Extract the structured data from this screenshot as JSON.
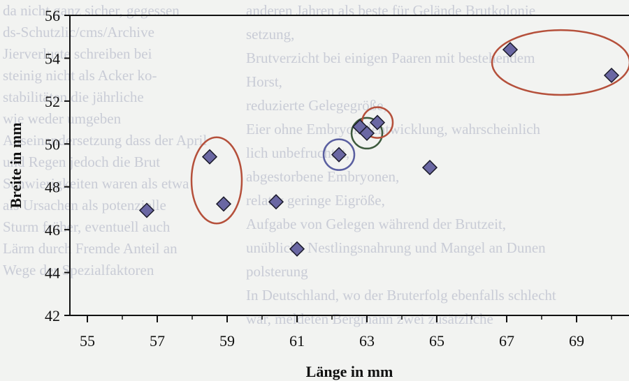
{
  "chart_data": {
    "type": "scatter",
    "xlabel": "Länge in mm",
    "ylabel": "Breite in mm",
    "xlim": [
      54.5,
      70.5
    ],
    "ylim": [
      42,
      56
    ],
    "xticks": [
      "55",
      "57",
      "59",
      "61",
      "63",
      "65",
      "67",
      "69"
    ],
    "yticks": [
      "42",
      "44",
      "46",
      "48",
      "50",
      "52",
      "54",
      "56"
    ],
    "grid": false,
    "marker": "diamond",
    "marker_color": "#6a67a3",
    "points": [
      {
        "x": 56.7,
        "y": 46.9
      },
      {
        "x": 58.5,
        "y": 49.4
      },
      {
        "x": 58.9,
        "y": 47.2
      },
      {
        "x": 60.4,
        "y": 47.3
      },
      {
        "x": 61.0,
        "y": 45.1
      },
      {
        "x": 62.2,
        "y": 49.5
      },
      {
        "x": 62.8,
        "y": 50.8
      },
      {
        "x": 63.0,
        "y": 50.5
      },
      {
        "x": 63.3,
        "y": 51.0
      },
      {
        "x": 64.8,
        "y": 48.9
      },
      {
        "x": 67.1,
        "y": 54.4
      },
      {
        "x": 70.0,
        "y": 53.2
      }
    ],
    "highlights": [
      {
        "shape": "ellipse",
        "color": "#b5503b",
        "around_points": [
          1,
          2
        ]
      },
      {
        "shape": "circle",
        "color": "#5a5fa0",
        "around_points": [
          5
        ]
      },
      {
        "shape": "circle",
        "color": "#3d5a3d",
        "around_points": [
          7
        ]
      },
      {
        "shape": "circle",
        "color": "#b5503b",
        "around_points": [
          8
        ]
      },
      {
        "shape": "ellipse",
        "color": "#b5503b",
        "around_points": [
          10,
          11
        ]
      }
    ]
  },
  "background_text": {
    "left_lines": [
      "da nicht ganz sicher, gegessen",
      "ds-Schutzlic/cms/Archive",
      "Jierverluste schreiben bei",
      "steinig nicht als Acker ko-",
      "stabilitäten die jährliche",
      "wie weder umgeben",
      "Auseinandersetzung dass der April",
      "und Regen jedoch die Brut",
      "Schwierigkeiten waren als etwa",
      "als Ursachen als potenzielle",
      "Sturm früher, eventuell auch",
      "Lärm durch Fremde Anteil an",
      "Wege der Spezialfaktoren"
    ],
    "right_lines": [
      "anderen Jahren als beste für Gelände Brutkolonie",
      "setzung,",
      "Brutverzicht bei einigen Paaren mit bestehendem",
      "Horst,",
      "reduzierte Gelegegröße,",
      "Eier ohne Embryonalentwicklung, wahrscheinlich",
      "lich unbefruchtet,",
      "abgestorbene Embryonen,",
      "relativ geringe Eigröße,",
      "Aufgabe von Gelegen während der Brutzeit,",
      "unübliche Nestlingsnahrung und Mangel an Dunen",
      "polsterung",
      "In Deutschland, wo der Bruterfolg ebenfalls schlecht",
      "war, meldeten Bergmann zwei zusätzliche"
    ]
  }
}
